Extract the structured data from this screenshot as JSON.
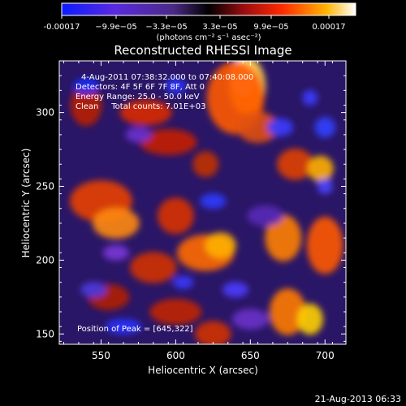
{
  "chart_data": {
    "type": "heatmap",
    "title": "Reconstructed RHESSI Image",
    "xlabel": "Heliocentric X (arcsec)",
    "ylabel": "Heliocentric Y (arcsec)",
    "xlim": [
      522,
      714
    ],
    "ylim": [
      143,
      335
    ],
    "xticks": [
      550,
      600,
      650,
      700
    ],
    "yticks": [
      150,
      200,
      250,
      300
    ],
    "colorbar": {
      "min": -0.00017,
      "max": 0.00017,
      "ticks": [
        "-0.00017",
        "−9.9e−05",
        "−3.3e−05",
        "3.3e−05",
        "9.9e−05",
        "0.00017"
      ],
      "label": "(photons cm⁻² s⁻¹ asec⁻²)",
      "colors": [
        "#0a1cff",
        "#6a22d8",
        "#5b2a8e",
        "#000000",
        "#8a0c10",
        "#ff2a00",
        "#ffb400",
        "#ffffff"
      ]
    },
    "annotations": [
      "4-Aug-2011 07:38:32.000 to 07:40:08.000",
      "Detectors: 4F 5F 6F 7F 8F, Att 0",
      "Energy Range: 25.0 - 50.0 keV",
      "Clean     Total counts: 7.01E+03"
    ],
    "peak_label": "Position of Peak = [645,322]",
    "peak": [
      645,
      322
    ]
  },
  "footer": {
    "timestamp": "21-Aug-2013 06:33"
  }
}
